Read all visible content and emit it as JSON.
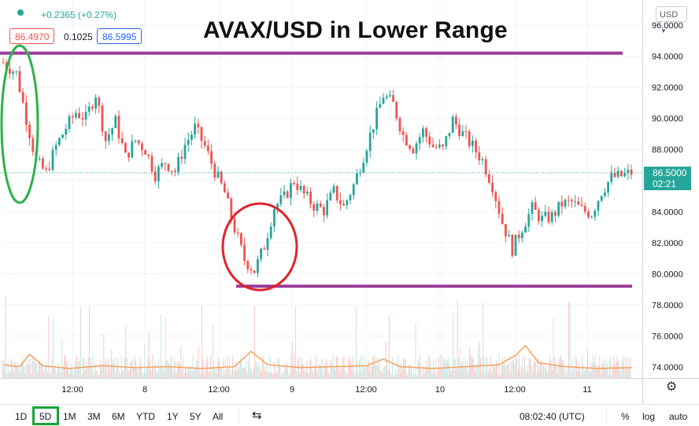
{
  "header": {
    "change": "+0.2365 (+0.27%)",
    "bid": "86.4970",
    "spread": "0.1025",
    "ask": "86.5995"
  },
  "title": "AVAX/USD in Lower Range",
  "currency_selector": "USD",
  "last_price": {
    "price": "86.5000",
    "countdown": "02:21"
  },
  "time_label": "08:02:40 (UTC)",
  "timeframes": [
    "1D",
    "5D",
    "1M",
    "3M",
    "6M",
    "YTD",
    "1Y",
    "5Y",
    "All"
  ],
  "active_timeframe": "5D",
  "bottom_options": {
    "percent": "%",
    "log": "log",
    "auto": "auto"
  },
  "colors": {
    "up": "#26a69a",
    "down": "#ef5350",
    "range_line": "#9c3c9a",
    "green_circle": "#2ab34a",
    "red_circle": "#e0242a",
    "volume_ma": "#f5a25d"
  },
  "chart_data": {
    "type": "candlestick",
    "title": "AVAX/USD in Lower Range",
    "y_ticks": [
      "96.0000",
      "94.0000",
      "92.0000",
      "90.0000",
      "88.0000",
      "86.0000",
      "84.0000",
      "82.0000",
      "80.0000",
      "78.0000",
      "76.0000",
      "74.0000"
    ],
    "ylim": [
      73.0,
      96.5
    ],
    "x_ticks": [
      "12:00",
      "8",
      "12:00",
      "9",
      "12:00",
      "10",
      "12:00",
      "11"
    ],
    "range_lines": [
      94.2,
      79.2
    ],
    "close_path": [
      [
        0,
        93.6
      ],
      [
        4,
        92.9
      ],
      [
        7,
        90.0
      ],
      [
        10,
        87.2
      ],
      [
        13,
        86.5
      ],
      [
        16,
        88.2
      ],
      [
        19,
        89.4
      ],
      [
        22,
        90.4
      ],
      [
        25,
        90.0
      ],
      [
        28,
        91.6
      ],
      [
        31,
        88.6
      ],
      [
        34,
        89.8
      ],
      [
        37,
        87.5
      ],
      [
        40,
        88.6
      ],
      [
        43,
        88.0
      ],
      [
        46,
        86.4
      ],
      [
        49,
        87.2
      ],
      [
        52,
        86.6
      ],
      [
        55,
        88.3
      ],
      [
        58,
        89.4
      ],
      [
        61,
        88.2
      ],
      [
        64,
        86.6
      ],
      [
        67,
        85.2
      ],
      [
        70,
        82.9
      ],
      [
        73,
        80.9
      ],
      [
        76,
        80.2
      ],
      [
        79,
        81.8
      ],
      [
        82,
        84.3
      ],
      [
        85,
        84.9
      ],
      [
        88,
        86.0
      ],
      [
        91,
        85.1
      ],
      [
        94,
        84.4
      ],
      [
        97,
        84.1
      ],
      [
        100,
        85.3
      ],
      [
        103,
        84.3
      ],
      [
        106,
        85.7
      ],
      [
        109,
        87.6
      ],
      [
        112,
        89.6
      ],
      [
        115,
        91.5
      ],
      [
        118,
        90.9
      ],
      [
        121,
        88.9
      ],
      [
        124,
        88.1
      ],
      [
        127,
        89.2
      ],
      [
        130,
        88.2
      ],
      [
        133,
        88.0
      ],
      [
        136,
        89.9
      ],
      [
        139,
        89.0
      ],
      [
        142,
        88.2
      ],
      [
        145,
        87.3
      ],
      [
        148,
        85.7
      ],
      [
        151,
        83.3
      ],
      [
        154,
        81.6
      ],
      [
        157,
        83.0
      ],
      [
        160,
        84.2
      ],
      [
        163,
        83.5
      ],
      [
        166,
        83.7
      ],
      [
        169,
        84.5
      ],
      [
        172,
        84.6
      ],
      [
        175,
        84.1
      ],
      [
        178,
        83.9
      ],
      [
        181,
        85.3
      ],
      [
        184,
        86.2
      ],
      [
        187,
        86.3
      ],
      [
        190,
        86.5
      ]
    ],
    "volume": {
      "ylim": [
        0,
        100
      ],
      "ma_path": [
        [
          0,
          14
        ],
        [
          5,
          12
        ],
        [
          8,
          25
        ],
        [
          12,
          13
        ],
        [
          20,
          10
        ],
        [
          30,
          13
        ],
        [
          40,
          11
        ],
        [
          50,
          12
        ],
        [
          60,
          10
        ],
        [
          70,
          12
        ],
        [
          75,
          28
        ],
        [
          80,
          14
        ],
        [
          90,
          11
        ],
        [
          100,
          12
        ],
        [
          110,
          13
        ],
        [
          115,
          20
        ],
        [
          120,
          12
        ],
        [
          130,
          10
        ],
        [
          140,
          12
        ],
        [
          150,
          14
        ],
        [
          155,
          24
        ],
        [
          158,
          34
        ],
        [
          162,
          16
        ],
        [
          170,
          12
        ],
        [
          180,
          10
        ],
        [
          190,
          11
        ]
      ]
    }
  }
}
